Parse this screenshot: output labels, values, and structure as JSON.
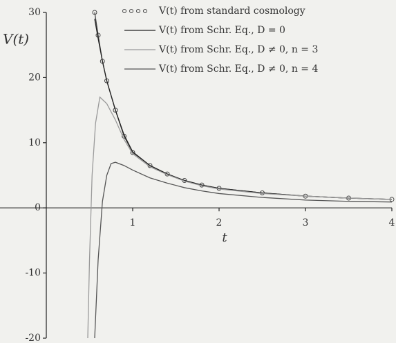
{
  "chart_data": {
    "type": "line",
    "y_label": "V(t)",
    "x_label": "t",
    "xlim": [
      -0.536,
      4
    ],
    "ylim": [
      -20,
      30
    ],
    "xticks": [
      1,
      2,
      3,
      4
    ],
    "yticks": [
      -20,
      -10,
      0,
      10,
      20,
      30
    ],
    "series": [
      {
        "name": "V(t) from standard cosmology",
        "color": "#444444",
        "marker": "circle",
        "x": [
          0.56,
          0.6,
          0.65,
          0.7,
          0.8,
          0.9,
          1,
          1.2,
          1.4,
          1.6,
          1.8,
          2,
          2.5,
          3,
          3.5,
          4
        ],
        "values": [
          30,
          26.5,
          22.5,
          19.5,
          15,
          11,
          8.5,
          6.5,
          5.2,
          4.2,
          3.5,
          3,
          2.3,
          1.8,
          1.5,
          1.3
        ]
      },
      {
        "name": "V(t) from Schr. Eq., D = 0",
        "color": "#222222",
        "x": [
          0.56,
          0.6,
          0.65,
          0.7,
          0.8,
          0.9,
          1,
          1.2,
          1.4,
          1.6,
          1.8,
          2,
          2.5,
          3,
          3.5,
          4
        ],
        "values": [
          29,
          26,
          22.5,
          19.5,
          15,
          11.2,
          8.6,
          6.5,
          5.2,
          4.2,
          3.5,
          3,
          2.3,
          1.8,
          1.5,
          1.3
        ]
      },
      {
        "name": "V(t) from Schr. Eq., D ≠ 0, n = 3",
        "color": "#9a9a9a",
        "x": [
          0.48,
          0.5,
          0.53,
          0.57,
          0.62,
          0.7,
          0.8,
          0.9,
          1,
          1.2,
          1.4,
          1.6,
          1.8,
          2,
          2.5,
          3,
          3.5,
          4
        ],
        "values": [
          -20,
          -8,
          5,
          13,
          17,
          16,
          13.5,
          10.5,
          8.3,
          6.3,
          5.1,
          4.1,
          3.4,
          2.9,
          2.2,
          1.8,
          1.5,
          1.3
        ]
      },
      {
        "name": "V(t) from Schr. Eq., D ≠ 0, n = 4",
        "color": "#555555",
        "x": [
          0.56,
          0.6,
          0.65,
          0.7,
          0.75,
          0.8,
          0.9,
          1,
          1.2,
          1.4,
          1.6,
          1.8,
          2,
          2.5,
          3,
          3.5,
          4
        ],
        "values": [
          -20,
          -8,
          1,
          5,
          6.8,
          7,
          6.5,
          5.8,
          4.6,
          3.8,
          3.1,
          2.6,
          2.2,
          1.6,
          1.2,
          1,
          0.9
        ]
      }
    ]
  }
}
